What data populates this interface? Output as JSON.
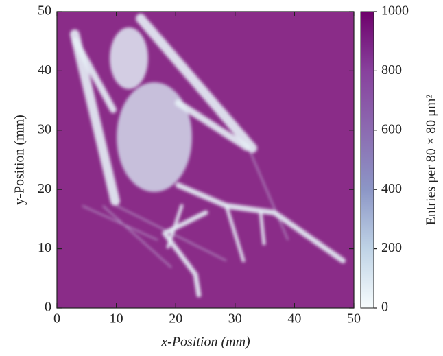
{
  "chart_data": {
    "type": "heatmap",
    "x_label": "x-Position (mm)",
    "y_label": "y-Position (mm)",
    "colorbar_label": "Entries per 80 × 80 μm²",
    "xlim": [
      0,
      50
    ],
    "ylim": [
      0,
      50
    ],
    "xticks": [
      0,
      10,
      20,
      30,
      40,
      50
    ],
    "yticks": [
      0,
      10,
      20,
      30,
      40,
      50
    ],
    "clim": [
      0,
      1000
    ],
    "cticks": [
      0,
      200,
      400,
      600,
      800,
      1000
    ],
    "colormap": [
      "#f7fcfd",
      "#bfd3e6",
      "#8c96c6",
      "#8c6bb1",
      "#88419d",
      "#6e016b"
    ]
  }
}
